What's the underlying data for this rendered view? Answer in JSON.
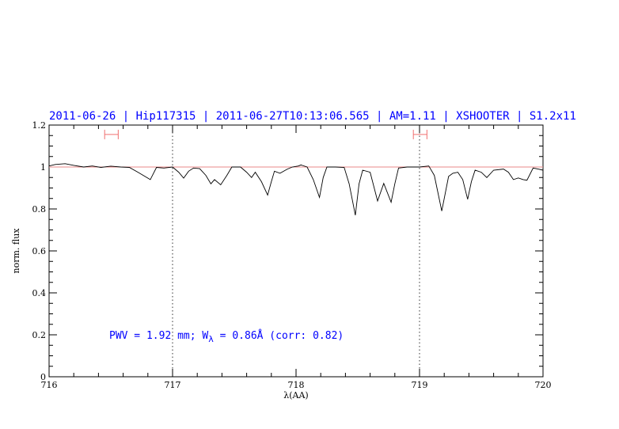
{
  "chart_data": {
    "type": "line",
    "title": "2011-06-26 | Hip117315 | 2011-06-27T10:13:06.565 | AM=1.11 | XSHOOTER | S1.2x11",
    "xlabel": "λ(AA)",
    "ylabel": "norm. flux",
    "xlim": [
      716,
      720
    ],
    "ylim": [
      0,
      1.2
    ],
    "xticks": [
      "716",
      "717",
      "718",
      "719",
      "720"
    ],
    "yticks": [
      "0",
      "0.2",
      "0.4",
      "0.6",
      "0.8",
      "1",
      "1.2"
    ],
    "grid": false,
    "annotation": {
      "prefix": "PWV = 1.92 mm; W",
      "subscript": "λ",
      "suffix": " = 0.86Å (corr: 0.82)"
    },
    "continuum_level": 1.0,
    "dotted_verticals": [
      717,
      719
    ],
    "error_bars": [
      {
        "x_from": 716.45,
        "x_to": 716.56,
        "y": 1.155
      },
      {
        "x_from": 718.95,
        "x_to": 719.06,
        "y": 1.155
      }
    ],
    "colors": {
      "spectrum": "#000000",
      "continuum": "#e88a8a",
      "error_bars": "#f07070",
      "title": "#0000ff"
    },
    "series": [
      {
        "x": [
          716.0,
          716.05,
          716.13,
          716.2,
          716.28,
          716.35,
          716.42,
          716.5,
          716.58,
          716.65,
          716.72,
          716.82,
          716.87,
          716.93,
          717.0,
          717.05,
          717.09,
          717.13,
          717.17,
          717.22,
          717.27,
          717.31,
          717.34,
          717.39,
          717.44,
          717.48,
          717.55,
          717.6,
          717.64,
          717.67,
          717.72,
          717.77,
          717.8,
          717.825,
          717.87,
          717.93,
          717.97,
          718.02,
          718.04,
          718.09,
          718.14,
          718.19,
          718.22,
          718.25,
          718.32,
          718.39,
          718.43,
          718.48,
          718.51,
          718.54,
          718.6,
          718.66,
          718.71,
          718.77,
          718.8,
          718.83,
          718.9,
          719.0,
          719.075,
          719.12,
          719.18,
          719.235,
          719.27,
          719.31,
          719.35,
          719.39,
          719.42,
          719.45,
          719.5,
          719.545,
          719.6,
          719.68,
          719.72,
          719.76,
          719.8,
          719.84,
          719.87,
          719.92,
          719.96,
          720.0
        ],
        "y": [
          1.005,
          1.012,
          1.016,
          1.008,
          1.0,
          1.005,
          0.998,
          1.004,
          1.0,
          0.998,
          0.975,
          0.94,
          0.998,
          0.995,
          1.0,
          0.975,
          0.947,
          0.98,
          0.995,
          0.992,
          0.96,
          0.92,
          0.94,
          0.915,
          0.96,
          1.0,
          1.0,
          0.975,
          0.95,
          0.975,
          0.93,
          0.866,
          0.93,
          0.98,
          0.97,
          0.99,
          1.0,
          1.005,
          1.01,
          1.0,
          0.94,
          0.855,
          0.95,
          1.0,
          1.0,
          0.998,
          0.92,
          0.77,
          0.92,
          0.985,
          0.975,
          0.838,
          0.922,
          0.832,
          0.92,
          0.995,
          1.0,
          1.0,
          1.005,
          0.96,
          0.79,
          0.955,
          0.97,
          0.975,
          0.94,
          0.846,
          0.93,
          0.985,
          0.975,
          0.95,
          0.985,
          0.99,
          0.975,
          0.94,
          0.948,
          0.94,
          0.937,
          0.995,
          0.99,
          0.985
        ]
      }
    ]
  }
}
